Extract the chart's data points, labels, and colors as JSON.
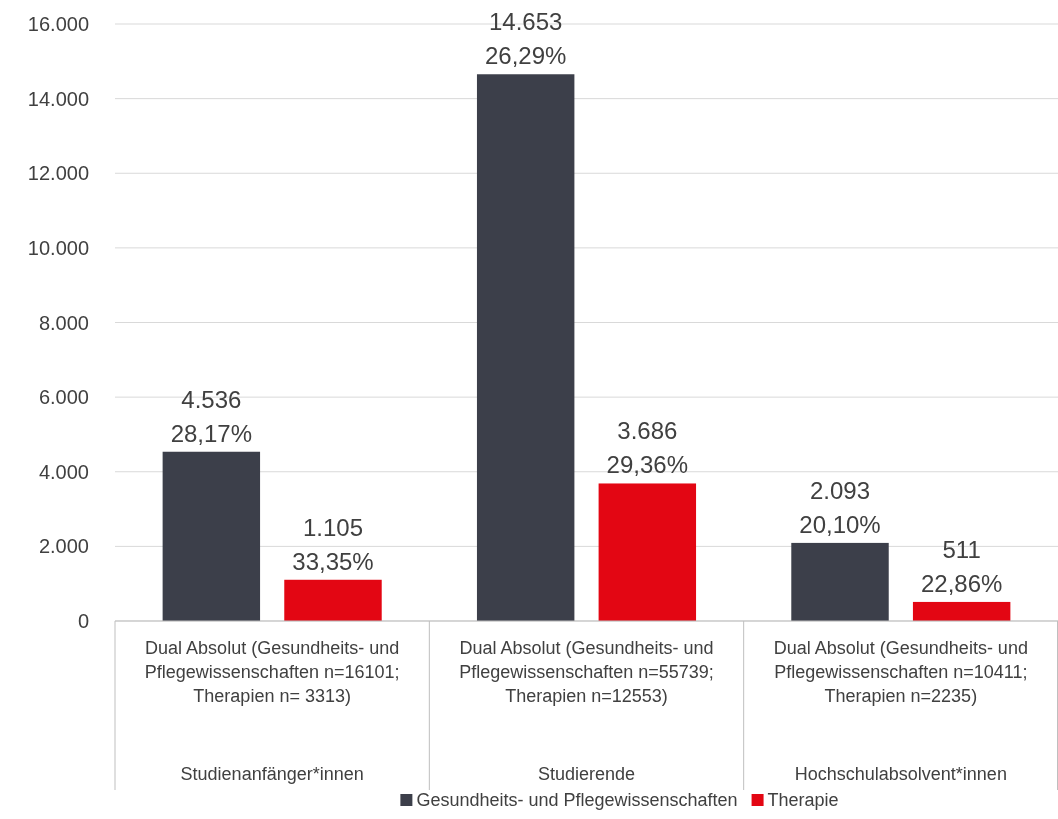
{
  "chart_data": {
    "type": "bar",
    "categories": [
      "Studienanfänger*innen",
      "Studierende",
      "Hochschulabsolvent*innen"
    ],
    "series": [
      {
        "name": "Gesundheits- und Pflegewissenschaften",
        "color": "#3c3f4a",
        "values": [
          4536,
          14653,
          2093
        ],
        "value_labels": [
          "4.536\n28,17%",
          "14.653\n26,29%",
          "2.093\n20,10%"
        ]
      },
      {
        "name": "Therapie",
        "color": "#e30613",
        "values": [
          1105,
          3686,
          511
        ],
        "value_labels": [
          "1.105\n33,35%",
          "3.686\n29,36%",
          "511\n22,86%"
        ]
      }
    ],
    "annotations": [
      "Dual Absolut (Gesundheits- und Pflegewissenschaften n=16101; Therapien n= 3313)",
      "Dual Absolut (Gesundheits- und Pflegewissenschaften n=55739; Therapien n=12553)",
      "Dual Absolut (Gesundheits- und Pflegewissenschaften n=10411; Therapien n=2235)"
    ],
    "ylim": [
      0,
      16000
    ],
    "yticks": [
      {
        "value": 0,
        "label": "0"
      },
      {
        "value": 2000,
        "label": "2.000"
      },
      {
        "value": 4000,
        "label": "4.000"
      },
      {
        "value": 6000,
        "label": "6.000"
      },
      {
        "value": 8000,
        "label": "8.000"
      },
      {
        "value": 10000,
        "label": "10.000"
      },
      {
        "value": 12000,
        "label": "12.000"
      },
      {
        "value": 14000,
        "label": "14.000"
      },
      {
        "value": 16000,
        "label": "16.000"
      }
    ],
    "grid": "y",
    "legend": "bottom"
  }
}
